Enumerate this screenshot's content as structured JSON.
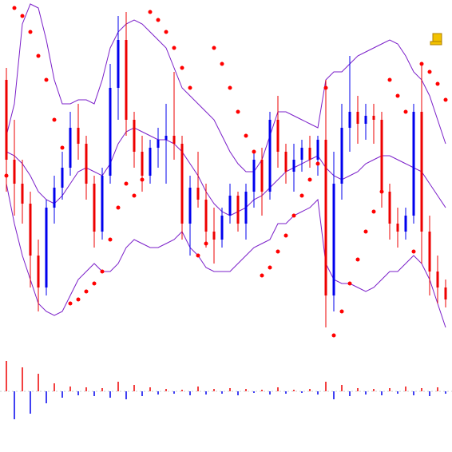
{
  "chart_data": [
    {
      "type": "candlestick",
      "ylim": [
        0,
        430
      ],
      "up_color": "#0000ee",
      "down_color": "#ee0000",
      "open": [
        330,
        230,
        200,
        175,
        110,
        70,
        170,
        195,
        220,
        270,
        250,
        200,
        140,
        210,
        320,
        380,
        280,
        240,
        210,
        245,
        255,
        260,
        250,
        150,
        195,
        180,
        140,
        130,
        160,
        185,
        150,
        190,
        230,
        190,
        280,
        240,
        215,
        230,
        245,
        230,
        255,
        60,
        200,
        270,
        290,
        275,
        285,
        280,
        190,
        150,
        140,
        160,
        290,
        140,
        90,
        70
      ],
      "high": [
        345,
        280,
        230,
        190,
        130,
        180,
        210,
        240,
        290,
        300,
        260,
        210,
        220,
        350,
        410,
        415,
        290,
        260,
        255,
        270,
        300,
        340,
        260,
        210,
        240,
        200,
        170,
        170,
        200,
        190,
        200,
        240,
        245,
        290,
        310,
        250,
        250,
        255,
        260,
        260,
        330,
        240,
        300,
        360,
        310,
        300,
        300,
        290,
        200,
        170,
        170,
        300,
        350,
        160,
        110,
        80
      ],
      "low": [
        190,
        160,
        150,
        70,
        40,
        60,
        150,
        180,
        210,
        230,
        180,
        120,
        130,
        200,
        280,
        260,
        220,
        190,
        200,
        220,
        200,
        230,
        130,
        110,
        170,
        120,
        100,
        120,
        150,
        140,
        130,
        170,
        160,
        180,
        220,
        200,
        190,
        215,
        220,
        210,
        20,
        40,
        180,
        240,
        250,
        255,
        250,
        170,
        130,
        120,
        130,
        150,
        100,
        60,
        50,
        45
      ],
      "close": [
        230,
        200,
        175,
        110,
        70,
        170,
        195,
        220,
        270,
        250,
        200,
        140,
        210,
        320,
        380,
        280,
        240,
        210,
        245,
        255,
        260,
        250,
        150,
        195,
        180,
        140,
        130,
        160,
        185,
        150,
        190,
        230,
        190,
        280,
        240,
        215,
        230,
        245,
        230,
        255,
        60,
        200,
        270,
        290,
        275,
        285,
        280,
        190,
        150,
        140,
        160,
        290,
        140,
        90,
        70,
        55
      ],
      "bands": {
        "color": "#7b1fc9",
        "upper": [
          260,
          300,
          400,
          425,
          420,
          380,
          330,
          300,
          300,
          305,
          305,
          300,
          330,
          370,
          390,
          400,
          405,
          400,
          390,
          380,
          370,
          345,
          320,
          310,
          300,
          290,
          280,
          260,
          240,
          225,
          215,
          215,
          230,
          260,
          290,
          290,
          285,
          280,
          275,
          270,
          330,
          340,
          340,
          350,
          360,
          365,
          370,
          375,
          380,
          375,
          360,
          340,
          330,
          310,
          280,
          250
        ],
        "middle": [
          240,
          235,
          225,
          210,
          190,
          180,
          175,
          185,
          200,
          215,
          220,
          215,
          210,
          225,
          250,
          265,
          270,
          265,
          260,
          255,
          255,
          250,
          240,
          225,
          210,
          190,
          175,
          165,
          160,
          165,
          170,
          180,
          185,
          195,
          205,
          215,
          220,
          225,
          230,
          235,
          220,
          210,
          205,
          210,
          215,
          225,
          230,
          235,
          235,
          230,
          225,
          220,
          215,
          200,
          185,
          170
        ],
        "lower": [
          200,
          150,
          110,
          80,
          50,
          40,
          35,
          40,
          60,
          80,
          90,
          100,
          90,
          90,
          100,
          120,
          130,
          125,
          120,
          120,
          125,
          130,
          140,
          120,
          110,
          95,
          90,
          90,
          90,
          100,
          110,
          120,
          125,
          130,
          150,
          150,
          160,
          165,
          170,
          180,
          100,
          80,
          75,
          75,
          70,
          65,
          70,
          80,
          90,
          90,
          100,
          110,
          100,
          80,
          50,
          20
        ]
      },
      "sar": {
        "color": "#ff0000",
        "values": [
          210,
          420,
          410,
          390,
          360,
          330,
          280,
          245,
          50,
          55,
          65,
          75,
          90,
          130,
          170,
          200,
          185,
          205,
          415,
          405,
          390,
          370,
          345,
          320,
          110,
          125,
          370,
          350,
          320,
          290,
          260,
          240,
          85,
          95,
          115,
          135,
          160,
          185,
          205,
          225,
          320,
          10,
          40,
          75,
          105,
          140,
          165,
          190,
          330,
          310,
          290,
          115,
          350,
          340,
          325,
          305
        ]
      }
    },
    {
      "type": "bar",
      "ylim": [
        -40,
        40
      ],
      "up_color": "#ee0000",
      "down_color": "#0000ee",
      "values": [
        38,
        -35,
        30,
        -28,
        22,
        -15,
        10,
        -8,
        6,
        -5,
        5,
        -6,
        4,
        -8,
        12,
        -10,
        8,
        -6,
        5,
        -4,
        3,
        -3,
        2,
        -5,
        6,
        -4,
        3,
        -3,
        4,
        -5,
        3,
        -2,
        2,
        -4,
        5,
        -3,
        2,
        -2,
        3,
        -4,
        12,
        -10,
        8,
        -6,
        4,
        -4,
        3,
        -5,
        4,
        -3,
        6,
        -5,
        4,
        -6,
        5,
        -3
      ]
    }
  ]
}
